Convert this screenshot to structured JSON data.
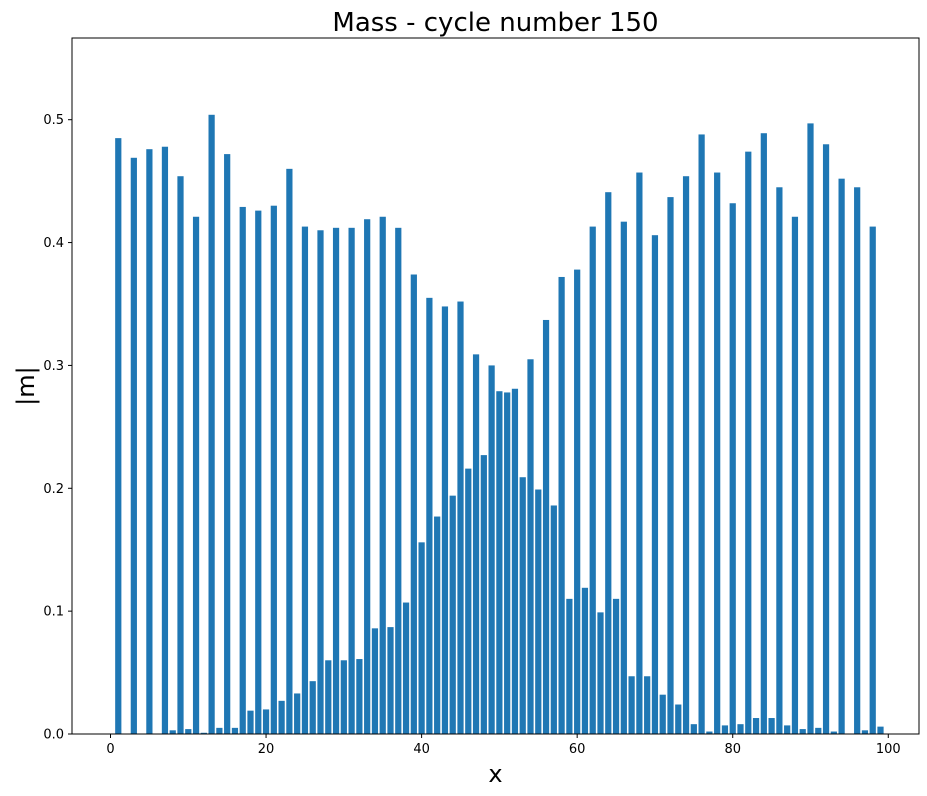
{
  "chart_data": {
    "type": "bar",
    "title": "Mass - cycle number 150",
    "xlabel": "x",
    "ylabel": "|m|",
    "xlim": [
      -4.95,
      103.95
    ],
    "ylim": [
      0,
      0.5665
    ],
    "xticks": [
      0,
      20,
      40,
      60,
      80,
      100
    ],
    "yticks": [
      0.0,
      0.1,
      0.2,
      0.3,
      0.4,
      0.5
    ],
    "ytick_labels": [
      "0.0",
      "0.1",
      "0.2",
      "0.3",
      "0.4",
      "0.5"
    ],
    "bar_width": 0.8,
    "grid": false,
    "color": "#1f77b4",
    "x": [
      1,
      2,
      3,
      4,
      5,
      6,
      7,
      8,
      9,
      10,
      11,
      12,
      13,
      14,
      15,
      16,
      17,
      18,
      19,
      20,
      21,
      22,
      23,
      24,
      25,
      26,
      27,
      28,
      29,
      30,
      31,
      32,
      33,
      34,
      35,
      36,
      37,
      38,
      39,
      40,
      41,
      42,
      43,
      44,
      45,
      46,
      47,
      48,
      49,
      50,
      51,
      52,
      53,
      54,
      55,
      56,
      57,
      58,
      59,
      60,
      61,
      62,
      63,
      64,
      65,
      66,
      67,
      68,
      69,
      70,
      71,
      72,
      73,
      74,
      75,
      76,
      77,
      78,
      79,
      80,
      81,
      82,
      83,
      84,
      85,
      86,
      87,
      88,
      89,
      90,
      91,
      92,
      93,
      94,
      95,
      96,
      97,
      98,
      99
    ],
    "values": [
      0.485,
      0,
      0.469,
      0,
      0.476,
      0,
      0.478,
      0.003,
      0.454,
      0.004,
      0.421,
      0.001,
      0.504,
      0.005,
      0.472,
      0.005,
      0.429,
      0.019,
      0.426,
      0.02,
      0.43,
      0.027,
      0.46,
      0.033,
      0.413,
      0.043,
      0.41,
      0.06,
      0.412,
      0.06,
      0.412,
      0.061,
      0.419,
      0.086,
      0.421,
      0.087,
      0.412,
      0.107,
      0.374,
      0.156,
      0.355,
      0.177,
      0.348,
      0.194,
      0.352,
      0.216,
      0.309,
      0.227,
      0.3,
      0.279,
      0.278,
      0.281,
      0.209,
      0.305,
      0.199,
      0.337,
      0.186,
      0.372,
      0.11,
      0.378,
      0.119,
      0.413,
      0.099,
      0.441,
      0.11,
      0.417,
      0.047,
      0.457,
      0.047,
      0.406,
      0.032,
      0.437,
      0.024,
      0.454,
      0.008,
      0.488,
      0.002,
      0.457,
      0.007,
      0.432,
      0.008,
      0.474,
      0.013,
      0.489,
      0.013,
      0.445,
      0.007,
      0.421,
      0.004,
      0.497,
      0.005,
      0.48,
      0.002,
      0.452,
      0,
      0.445,
      0.003,
      0.413,
      0.006
    ]
  }
}
